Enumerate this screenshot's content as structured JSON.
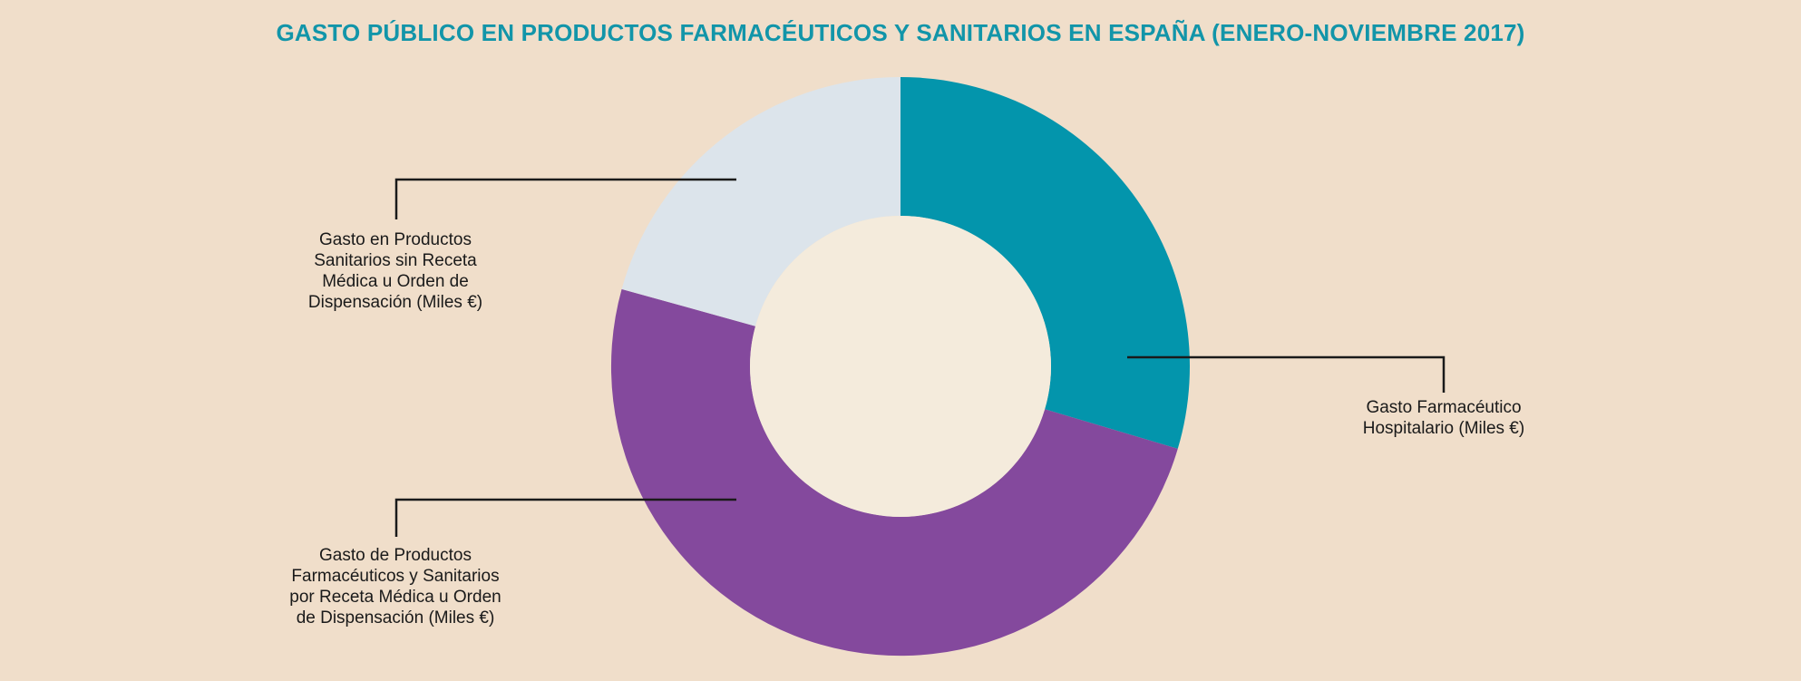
{
  "chart_data": {
    "type": "pie",
    "variant": "donut",
    "title": "GASTO PÚBLICO EN PRODUCTOS FARMACÉUTICOS Y SANITARIOS EN ESPAÑA (ENERO-NOVIEMBRE 2017)",
    "start_angle_deg": 0,
    "direction": "clockwise",
    "inner_radius_ratio": 0.52,
    "legend_position": "callout-labels",
    "grid": false,
    "segments": [
      {
        "name": "Gasto Farmacéutico Hospitalario (Miles €)",
        "percent": 29.6,
        "color": "#0395AC"
      },
      {
        "name": "Gasto de Productos Farmacéuticos y Sanitarios por Receta Médica u Orden de Dispensación (Miles €)",
        "percent": 49.7,
        "color": "#84499D"
      },
      {
        "name": "Gasto en Productos Sanitarios sin Receta Médica u Orden de Dispensación (Miles €)",
        "percent": 20.7,
        "color": "#DCE4EB"
      }
    ]
  },
  "labels": {
    "sanitarios": "Gasto en Productos\nSanitarios sin Receta\nMédica u Orden de\nDispensación (Miles €)",
    "receta": "Gasto de Productos\nFarmacéuticos y Sanitarios\npor Receta Médica u Orden\nde Dispensación (Miles €)",
    "hospitalario": "Gasto Farmacéutico\nHospitalario (Miles €)"
  },
  "colors": {
    "background": "#F0DECA",
    "title": "#1295A9",
    "hole": "#F4EBDC",
    "text": "#1A1A1A",
    "leader_line": "#1A1A1A"
  }
}
